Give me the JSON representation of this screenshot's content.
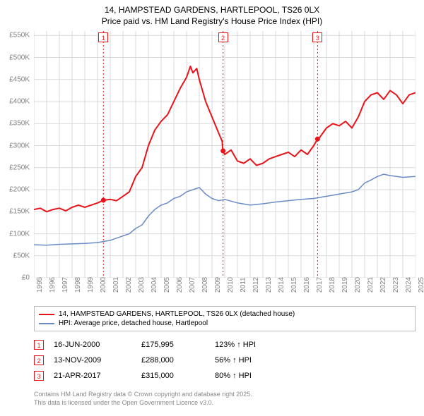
{
  "title_line1": "14, HAMPSTEAD GARDENS, HARTLEPOOL, TS26 0LX",
  "title_line2": "Price paid vs. HM Land Registry's House Price Index (HPI)",
  "chart": {
    "type": "line",
    "background_color": "#ffffff",
    "grid_color": "#d9d9d9",
    "axis_color": "#808080",
    "tick_font_size": 10,
    "x_min": 1995,
    "x_max": 2025,
    "x_tick_step": 1,
    "y_min": 0,
    "y_max": 560000,
    "y_ticks": [
      0,
      50000,
      100000,
      150000,
      200000,
      250000,
      300000,
      350000,
      400000,
      450000,
      500000,
      550000
    ],
    "y_tick_labels": [
      "£0",
      "£50K",
      "£100K",
      "£150K",
      "£200K",
      "£250K",
      "£300K",
      "£350K",
      "£400K",
      "£450K",
      "£500K",
      "£550K"
    ],
    "series": [
      {
        "name": "price_paid",
        "label": "14, HAMPSTEAD GARDENS, HARTLEPOOL, TS26 0LX (detached house)",
        "color": "#e8141b",
        "line_width": 2,
        "data": [
          [
            1995.0,
            155000
          ],
          [
            1995.5,
            158000
          ],
          [
            1996.0,
            150000
          ],
          [
            1996.5,
            155000
          ],
          [
            1997.0,
            158000
          ],
          [
            1997.5,
            152000
          ],
          [
            1998.0,
            160000
          ],
          [
            1998.5,
            165000
          ],
          [
            1999.0,
            160000
          ],
          [
            1999.5,
            165000
          ],
          [
            2000.0,
            170000
          ],
          [
            2000.46,
            175995
          ],
          [
            2001.0,
            178000
          ],
          [
            2001.5,
            175000
          ],
          [
            2002.0,
            185000
          ],
          [
            2002.5,
            195000
          ],
          [
            2003.0,
            230000
          ],
          [
            2003.5,
            250000
          ],
          [
            2004.0,
            300000
          ],
          [
            2004.5,
            335000
          ],
          [
            2005.0,
            355000
          ],
          [
            2005.5,
            370000
          ],
          [
            2006.0,
            400000
          ],
          [
            2006.5,
            430000
          ],
          [
            2007.0,
            455000
          ],
          [
            2007.3,
            480000
          ],
          [
            2007.5,
            465000
          ],
          [
            2007.8,
            475000
          ],
          [
            2008.0,
            450000
          ],
          [
            2008.5,
            400000
          ],
          [
            2009.0,
            365000
          ],
          [
            2009.5,
            330000
          ],
          [
            2009.8,
            310000
          ],
          [
            2009.85,
            288000
          ],
          [
            2010.0,
            280000
          ],
          [
            2010.5,
            290000
          ],
          [
            2011.0,
            265000
          ],
          [
            2011.5,
            260000
          ],
          [
            2012.0,
            270000
          ],
          [
            2012.5,
            255000
          ],
          [
            2013.0,
            260000
          ],
          [
            2013.5,
            270000
          ],
          [
            2014.0,
            275000
          ],
          [
            2014.5,
            280000
          ],
          [
            2015.0,
            285000
          ],
          [
            2015.5,
            275000
          ],
          [
            2016.0,
            290000
          ],
          [
            2016.5,
            280000
          ],
          [
            2017.0,
            300000
          ],
          [
            2017.3,
            315000
          ],
          [
            2017.5,
            320000
          ],
          [
            2018.0,
            340000
          ],
          [
            2018.5,
            350000
          ],
          [
            2019.0,
            345000
          ],
          [
            2019.5,
            355000
          ],
          [
            2020.0,
            340000
          ],
          [
            2020.5,
            365000
          ],
          [
            2021.0,
            400000
          ],
          [
            2021.5,
            415000
          ],
          [
            2022.0,
            420000
          ],
          [
            2022.5,
            405000
          ],
          [
            2023.0,
            425000
          ],
          [
            2023.5,
            415000
          ],
          [
            2024.0,
            395000
          ],
          [
            2024.5,
            415000
          ],
          [
            2025.0,
            420000
          ]
        ]
      },
      {
        "name": "hpi",
        "label": "HPI: Average price, detached house, Hartlepool",
        "color": "#6a8bc4",
        "line_width": 1.5,
        "data": [
          [
            1995.0,
            75000
          ],
          [
            1996.0,
            74000
          ],
          [
            1997.0,
            76000
          ],
          [
            1998.0,
            77000
          ],
          [
            1999.0,
            78000
          ],
          [
            2000.0,
            80000
          ],
          [
            2001.0,
            85000
          ],
          [
            2002.0,
            95000
          ],
          [
            2002.5,
            100000
          ],
          [
            2003.0,
            112000
          ],
          [
            2003.5,
            120000
          ],
          [
            2004.0,
            140000
          ],
          [
            2004.5,
            155000
          ],
          [
            2005.0,
            165000
          ],
          [
            2005.5,
            170000
          ],
          [
            2006.0,
            180000
          ],
          [
            2006.5,
            185000
          ],
          [
            2007.0,
            195000
          ],
          [
            2007.5,
            200000
          ],
          [
            2008.0,
            205000
          ],
          [
            2008.5,
            190000
          ],
          [
            2009.0,
            180000
          ],
          [
            2009.5,
            175000
          ],
          [
            2010.0,
            178000
          ],
          [
            2011.0,
            170000
          ],
          [
            2012.0,
            165000
          ],
          [
            2013.0,
            168000
          ],
          [
            2014.0,
            172000
          ],
          [
            2015.0,
            175000
          ],
          [
            2016.0,
            178000
          ],
          [
            2017.0,
            180000
          ],
          [
            2018.0,
            185000
          ],
          [
            2019.0,
            190000
          ],
          [
            2020.0,
            195000
          ],
          [
            2020.5,
            200000
          ],
          [
            2021.0,
            215000
          ],
          [
            2021.5,
            222000
          ],
          [
            2022.0,
            230000
          ],
          [
            2022.5,
            235000
          ],
          [
            2023.0,
            232000
          ],
          [
            2024.0,
            228000
          ],
          [
            2025.0,
            230000
          ]
        ]
      }
    ],
    "sale_markers": [
      {
        "n": "1",
        "x": 2000.46,
        "y": 175995
      },
      {
        "n": "2",
        "x": 2009.87,
        "y": 288000
      },
      {
        "n": "3",
        "x": 2017.3,
        "y": 315000
      }
    ],
    "marker_line_color": "#e8141b",
    "marker_dot_color": "#e8141b",
    "marker_dot_radius": 3.5
  },
  "legend": {
    "items": [
      {
        "color": "#e8141b",
        "label": "14, HAMPSTEAD GARDENS, HARTLEPOOL, TS26 0LX (detached house)"
      },
      {
        "color": "#6a8bc4",
        "label": "HPI: Average price, detached house, Hartlepool"
      }
    ]
  },
  "sales": [
    {
      "n": "1",
      "date": "16-JUN-2000",
      "price": "£175,995",
      "pct": "123% ↑ HPI"
    },
    {
      "n": "2",
      "date": "13-NOV-2009",
      "price": "£288,000",
      "pct": "56% ↑ HPI"
    },
    {
      "n": "3",
      "date": "21-APR-2017",
      "price": "£315,000",
      "pct": "80% ↑ HPI"
    }
  ],
  "footnote_line1": "Contains HM Land Registry data © Crown copyright and database right 2025.",
  "footnote_line2": "This data is licensed under the Open Government Licence v3.0."
}
